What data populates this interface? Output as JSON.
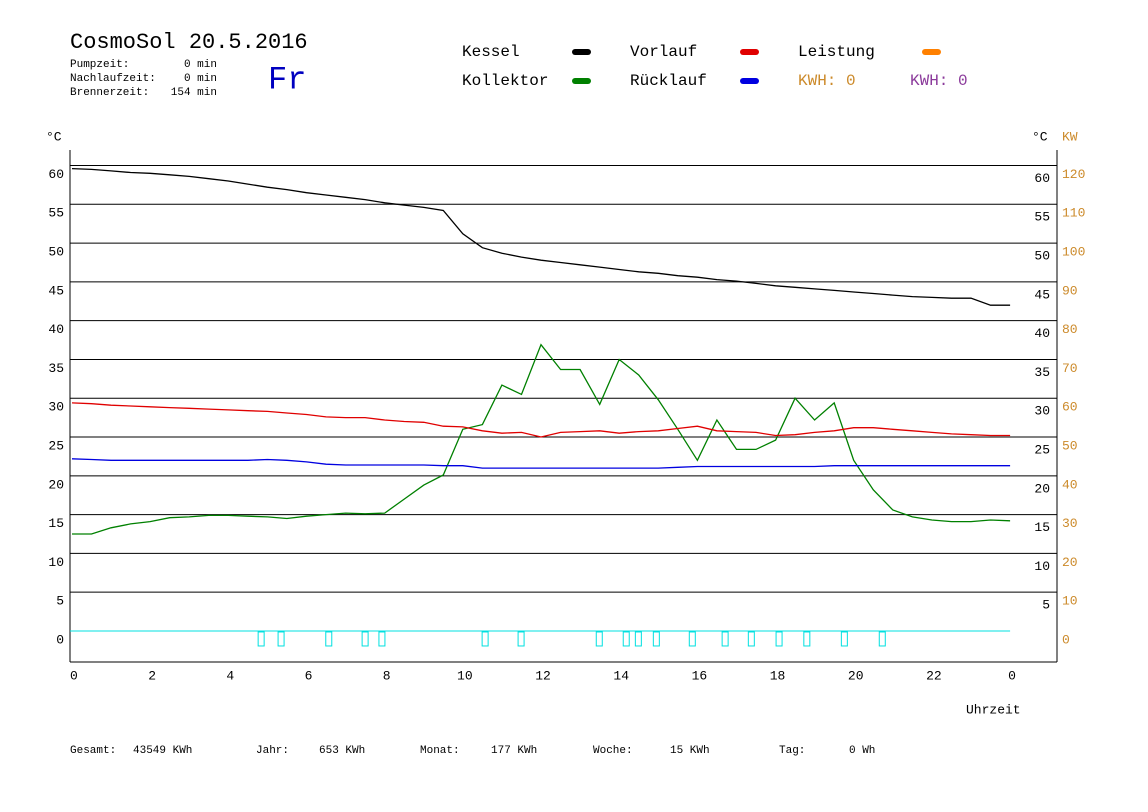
{
  "header": {
    "title": "CosmoSol 20.5.2016",
    "weekday": "Fr",
    "info": [
      [
        "Pumpzeit:",
        "0 min"
      ],
      [
        "Nachlaufzeit:",
        "0 min"
      ],
      [
        "Brennerzeit:",
        "154 min"
      ]
    ],
    "kwh_orange": "KWH: 0",
    "kwh_purple": "KWH: 0"
  },
  "footer": [
    [
      "Gesamt:",
      "43549 KWh"
    ],
    [
      "Jahr:",
      "653 KWh"
    ],
    [
      "Monat:",
      "177 KWh"
    ],
    [
      "Woche:",
      "15 KWh"
    ],
    [
      "Tag:",
      "0 Wh"
    ]
  ],
  "chart_data": {
    "type": "line",
    "y_label": "°C",
    "y_label_right": "°C",
    "y2_label": "KW",
    "x_label": "Uhrzeit",
    "x": [
      0,
      0.5,
      1,
      1.5,
      2,
      2.5,
      3,
      3.5,
      4,
      4.5,
      5,
      5.5,
      6,
      6.5,
      7,
      7.5,
      8,
      8.5,
      9,
      9.5,
      10,
      10.5,
      11,
      11.5,
      12,
      12.5,
      13,
      13.5,
      14,
      14.5,
      15,
      15.5,
      16,
      16.5,
      17,
      17.5,
      18,
      18.5,
      19,
      19.5,
      20,
      20.5,
      21,
      21.5,
      22,
      22.5,
      23,
      23.5,
      24
    ],
    "series": [
      {
        "name": "Kessel",
        "color": "#000000",
        "values": [
          59.6,
          59.5,
          59.3,
          59.1,
          59.0,
          58.8,
          58.6,
          58.3,
          58.0,
          57.6,
          57.2,
          56.9,
          56.5,
          56.2,
          55.9,
          55.6,
          55.2,
          54.9,
          54.6,
          54.2,
          51.2,
          49.4,
          48.7,
          48.2,
          47.8,
          47.5,
          47.2,
          46.9,
          46.6,
          46.3,
          46.1,
          45.8,
          45.6,
          45.3,
          45.1,
          44.8,
          44.5,
          44.3,
          44.1,
          43.9,
          43.7,
          43.5,
          43.3,
          43.1,
          43.0,
          42.9,
          42.9,
          42.0,
          42.0
        ]
      },
      {
        "name": "Kollektor",
        "color": "#008000",
        "values": [
          12.5,
          12.5,
          13.3,
          13.8,
          14.1,
          14.6,
          14.7,
          14.9,
          14.9,
          14.8,
          14.7,
          14.5,
          14.8,
          15.0,
          15.2,
          15.1,
          15.2,
          17.0,
          18.8,
          20.1,
          26.0,
          26.6,
          31.7,
          30.5,
          36.9,
          33.7,
          33.7,
          29.2,
          35.0,
          33.0,
          29.8,
          26.0,
          22.0,
          27.2,
          23.4,
          23.4,
          24.6,
          30.0,
          27.2,
          29.4,
          22.0,
          18.2,
          15.6,
          14.7,
          14.3,
          14.1,
          14.1,
          14.3,
          14.2
        ]
      },
      {
        "name": "Vorlauf",
        "color": "#e00000",
        "values": [
          29.4,
          29.3,
          29.1,
          29.0,
          28.9,
          28.8,
          28.7,
          28.6,
          28.5,
          28.4,
          28.3,
          28.1,
          27.9,
          27.6,
          27.5,
          27.5,
          27.2,
          27.0,
          26.9,
          26.4,
          26.3,
          25.8,
          25.5,
          25.6,
          25.0,
          25.6,
          25.7,
          25.8,
          25.5,
          25.7,
          25.8,
          26.1,
          26.4,
          25.8,
          25.7,
          25.6,
          25.2,
          25.3,
          25.6,
          25.8,
          26.2,
          26.2,
          26.0,
          25.8,
          25.6,
          25.4,
          25.3,
          25.2,
          25.2
        ]
      },
      {
        "name": "Rücklauf",
        "color": "#0000e0",
        "values": [
          22.2,
          22.1,
          22.0,
          22.0,
          22.0,
          22.0,
          22.0,
          22.0,
          22.0,
          22.0,
          22.1,
          22.0,
          21.8,
          21.5,
          21.4,
          21.4,
          21.4,
          21.4,
          21.4,
          21.3,
          21.3,
          21.0,
          21.0,
          21.0,
          21.0,
          21.0,
          21.0,
          21.0,
          21.0,
          21.0,
          21.0,
          21.1,
          21.2,
          21.2,
          21.2,
          21.2,
          21.2,
          21.2,
          21.2,
          21.3,
          21.3,
          21.3,
          21.3,
          21.3,
          21.3,
          21.3,
          21.3,
          21.3,
          21.3
        ]
      }
    ],
    "legend_extra": {
      "name": "Leistung",
      "color": "#ff8000"
    },
    "kwh_colors": [
      "#cc8a2a",
      "#8b3a9b"
    ],
    "markers_x": [
      4.84,
      5.35,
      6.57,
      7.5,
      7.93,
      10.57,
      11.49,
      13.49,
      14.18,
      14.49,
      14.95,
      15.87,
      16.71,
      17.38,
      18.09,
      18.8,
      19.76,
      20.73
    ],
    "marker_color": "#00e0e0",
    "xlim": [
      -0.05,
      25.2
    ],
    "xticks": [
      0,
      2,
      4,
      6,
      8,
      10,
      12,
      14,
      16,
      18,
      20,
      22,
      {
        "value": 24,
        "label": "0"
      }
    ],
    "ylim": [
      -4,
      62
    ],
    "yticks": [
      0,
      5,
      10,
      15,
      20,
      25,
      30,
      35,
      40,
      45,
      50,
      55,
      60
    ],
    "yticks_right": [
      5,
      10,
      15,
      20,
      25,
      30,
      35,
      40,
      45,
      50,
      55,
      60
    ],
    "y2lim": [
      -8,
      124
    ],
    "y2ticks": [
      0,
      10,
      20,
      30,
      40,
      50,
      60,
      70,
      80,
      90,
      100,
      110,
      120
    ],
    "y2_color": "#cc8a2a",
    "grid": true
  }
}
